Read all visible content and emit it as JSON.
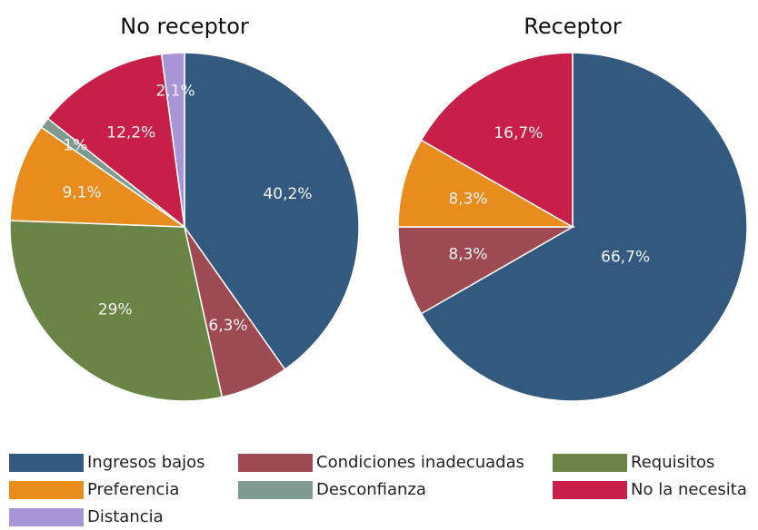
{
  "chart_data": [
    {
      "type": "pie",
      "title": "No receptor",
      "categories": [
        "Ingresos bajos",
        "Condiciones inadecuadas",
        "Requisitos",
        "Preferencia",
        "Desconfianza",
        "No la necesita",
        "Distancia"
      ],
      "values": [
        40.2,
        6.3,
        29,
        9.1,
        1,
        12.2,
        2.1
      ],
      "value_labels": [
        "40,2%",
        "6,3%",
        "29%",
        "9,1%",
        "1%",
        "12,2%",
        "2,1%"
      ],
      "colors": [
        "#335a7e",
        "#9e4a52",
        "#6a8446",
        "#e88c1e",
        "#7f9a90",
        "#c81f48",
        "#a895d6"
      ]
    },
    {
      "type": "pie",
      "title": "Receptor",
      "categories": [
        "Ingresos bajos",
        "Condiciones inadecuadas",
        "Preferencia",
        "No la necesita"
      ],
      "values": [
        66.7,
        8.3,
        8.3,
        16.7
      ],
      "value_labels": [
        "66,7%",
        "8,3%",
        "8,3%",
        "16,7%"
      ],
      "colors": [
        "#335a7e",
        "#9e4a52",
        "#e88c1e",
        "#c81f48"
      ]
    }
  ]
}
